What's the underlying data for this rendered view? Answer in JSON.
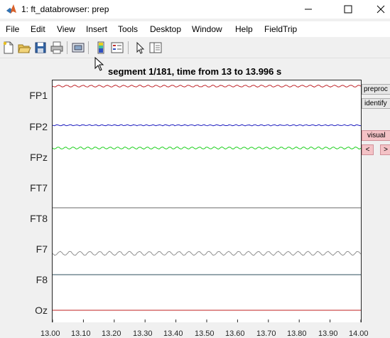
{
  "window": {
    "title": "1: ft_databrowser: prep"
  },
  "menu": [
    "File",
    "Edit",
    "View",
    "Insert",
    "Tools",
    "Desktop",
    "Window",
    "Help",
    "FieldTrip"
  ],
  "toolbar": {
    "icons": [
      "new-figure-icon",
      "open-file-icon",
      "save-icon",
      "print-icon",
      "print-preview-icon",
      "colorbar-icon",
      "legend-icon",
      "edit-plot-icon",
      "property-inspector-icon"
    ]
  },
  "plot": {
    "title": "segment 1/181, time from 13 to 13.996 s",
    "channels": [
      "FP1",
      "FP2",
      "FPz",
      "FT7",
      "FT8",
      "F7",
      "F8",
      "Oz"
    ],
    "xticks": [
      "13.00",
      "13.10",
      "13.20",
      "13.30",
      "13.40",
      "13.50",
      "13.60",
      "13.70",
      "13.80",
      "13.90",
      "14.00"
    ]
  },
  "side_panel": {
    "preproc_label": "preproc",
    "identify_label": "identify",
    "visual_label": "visual",
    "prev_label": "<",
    "next_label": ">"
  },
  "colors": {
    "FP1": "#c0282d",
    "FP2": "#2020c0",
    "FPz": "#20d020",
    "FT8": "#6a6a6a",
    "F7": "#909090",
    "F8": "#2c4f5e",
    "Oz": "#c02020"
  }
}
